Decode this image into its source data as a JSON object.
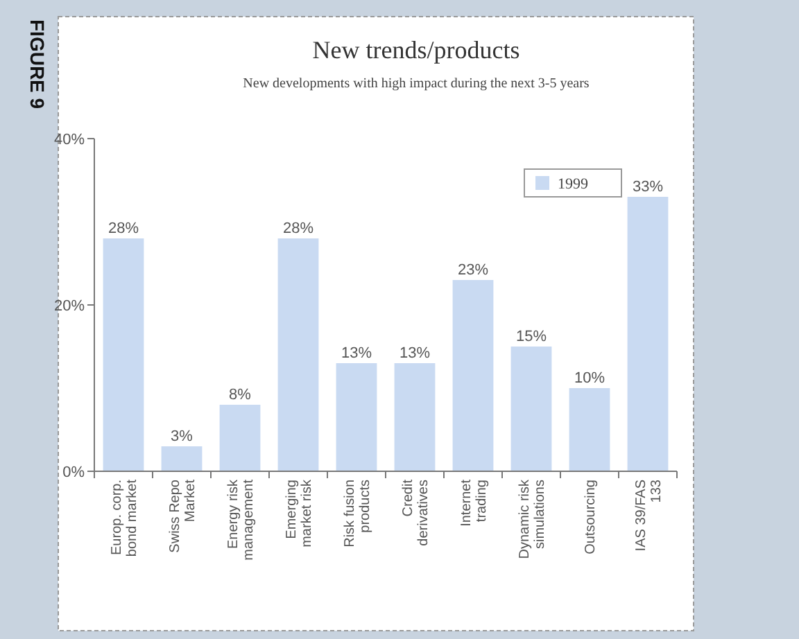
{
  "chart_data": {
    "type": "bar",
    "title": "New trends/products",
    "subtitle": "New developments with high impact during the next 3-5 years",
    "categories": [
      "Europ. corp. bond market",
      "Swiss Repo Market",
      "Energy risk management",
      "Emerging market risk",
      "Risk fusion products",
      "Credit derivatives",
      "Internet trading",
      "Dynamic risk simulations",
      "Outsourcing",
      "IAS 39/FAS 133"
    ],
    "series": [
      {
        "name": "1999",
        "color": "#c9daf2",
        "values": [
          28,
          3,
          8,
          28,
          13,
          13,
          23,
          15,
          10,
          33
        ]
      }
    ],
    "value_labels": [
      "28%",
      "3%",
      "8%",
      "28%",
      "13%",
      "13%",
      "23%",
      "15%",
      "10%",
      "33%"
    ],
    "ylim": [
      0,
      40
    ],
    "yticks": [
      {
        "value": 0,
        "label": "0%"
      },
      {
        "value": 20,
        "label": "20%"
      },
      {
        "value": 40,
        "label": "40%"
      }
    ],
    "legend": "top right",
    "grid": false,
    "annotations": [
      "FIGURE 9"
    ]
  }
}
